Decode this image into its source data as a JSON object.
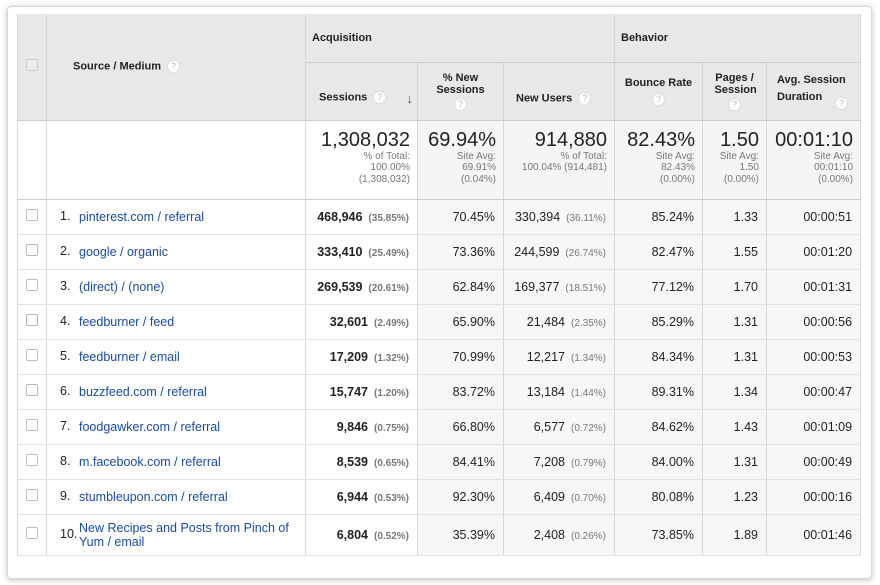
{
  "header": {
    "source_medium": "Source / Medium",
    "acquisition": "Acquisition",
    "behavior": "Behavior",
    "columns": [
      "Sessions",
      "% New Sessions",
      "New Users",
      "Bounce Rate",
      "Pages / Session",
      "Avg. Session Duration"
    ],
    "help": "?",
    "sort_icon": "arrow-down-icon"
  },
  "totals": [
    {
      "value": "1,308,032",
      "l1": "% of Total:",
      "l2": "100.00%",
      "l3": "(1,308,032)"
    },
    {
      "value": "69.94%",
      "l1": "Site Avg:",
      "l2": "69.91%",
      "l3": "(0.04%)"
    },
    {
      "value": "914,880",
      "l1": "% of Total:",
      "l2": "100.04% (914,481)",
      "l3": ""
    },
    {
      "value": "82.43%",
      "l1": "Site Avg:",
      "l2": "82.43%",
      "l3": "(0.00%)"
    },
    {
      "value": "1.50",
      "l1": "Site Avg:",
      "l2": "1.50",
      "l3": "(0.00%)"
    },
    {
      "value": "00:01:10",
      "l1": "Site Avg:",
      "l2": "00:01:10",
      "l3": "(0.00%)"
    }
  ],
  "rows": [
    {
      "n": "1.",
      "src": "pinterest.com / referral",
      "sessions": "468,946",
      "sp": "(35.85%)",
      "pnew": "70.45%",
      "users": "330,394",
      "up": "(36.11%)",
      "bounce": "85.24%",
      "pages": "1.33",
      "dur": "00:00:51"
    },
    {
      "n": "2.",
      "src": "google / organic",
      "sessions": "333,410",
      "sp": "(25.49%)",
      "pnew": "73.36%",
      "users": "244,599",
      "up": "(26.74%)",
      "bounce": "82.47%",
      "pages": "1.55",
      "dur": "00:01:20"
    },
    {
      "n": "3.",
      "src": "(direct) / (none)",
      "sessions": "269,539",
      "sp": "(20.61%)",
      "pnew": "62.84%",
      "users": "169,377",
      "up": "(18.51%)",
      "bounce": "77.12%",
      "pages": "1.70",
      "dur": "00:01:31"
    },
    {
      "n": "4.",
      "src": "feedburner / feed",
      "sessions": "32,601",
      "sp": "(2.49%)",
      "pnew": "65.90%",
      "users": "21,484",
      "up": "(2.35%)",
      "bounce": "85.29%",
      "pages": "1.31",
      "dur": "00:00:56"
    },
    {
      "n": "5.",
      "src": "feedburner / email",
      "sessions": "17,209",
      "sp": "(1.32%)",
      "pnew": "70.99%",
      "users": "12,217",
      "up": "(1.34%)",
      "bounce": "84.34%",
      "pages": "1.31",
      "dur": "00:00:53"
    },
    {
      "n": "6.",
      "src": "buzzfeed.com / referral",
      "sessions": "15,747",
      "sp": "(1.20%)",
      "pnew": "83.72%",
      "users": "13,184",
      "up": "(1.44%)",
      "bounce": "89.31%",
      "pages": "1.34",
      "dur": "00:00:47"
    },
    {
      "n": "7.",
      "src": "foodgawker.com / referral",
      "sessions": "9,846",
      "sp": "(0.75%)",
      "pnew": "66.80%",
      "users": "6,577",
      "up": "(0.72%)",
      "bounce": "84.62%",
      "pages": "1.43",
      "dur": "00:01:09"
    },
    {
      "n": "8.",
      "src": "m.facebook.com / referral",
      "sessions": "8,539",
      "sp": "(0.65%)",
      "pnew": "84.41%",
      "users": "7,208",
      "up": "(0.79%)",
      "bounce": "84.00%",
      "pages": "1.31",
      "dur": "00:00:49"
    },
    {
      "n": "9.",
      "src": "stumbleupon.com / referral",
      "sessions": "6,944",
      "sp": "(0.53%)",
      "pnew": "92.30%",
      "users": "6,409",
      "up": "(0.70%)",
      "bounce": "80.08%",
      "pages": "1.23",
      "dur": "00:00:16"
    },
    {
      "n": "10.",
      "src": "New Recipes and Posts from Pinch of Yum / email",
      "sessions": "6,804",
      "sp": "(0.52%)",
      "pnew": "35.39%",
      "users": "2,408",
      "up": "(0.26%)",
      "bounce": "73.85%",
      "pages": "1.89",
      "dur": "00:01:46"
    }
  ]
}
